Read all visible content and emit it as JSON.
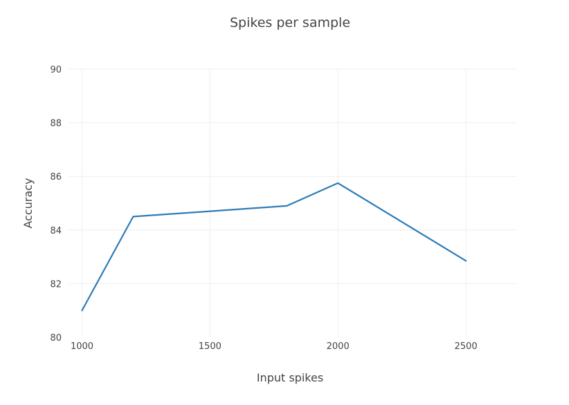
{
  "chart_data": {
    "type": "line",
    "title": "Spikes per sample",
    "xlabel": "Input spikes",
    "ylabel": "Accuracy",
    "xlim": [
      950,
      2700
    ],
    "ylim": [
      80,
      90
    ],
    "xticks": [
      1000,
      1500,
      2000,
      2500
    ],
    "yticks": [
      80,
      82,
      84,
      86,
      88,
      90
    ],
    "grid": true,
    "legend": "none",
    "series": [
      {
        "color": "#2e7bb5",
        "x": [
          1000,
          1200,
          1800,
          2000,
          2500
        ],
        "y": [
          81.0,
          84.5,
          84.9,
          85.75,
          82.85
        ]
      }
    ]
  }
}
